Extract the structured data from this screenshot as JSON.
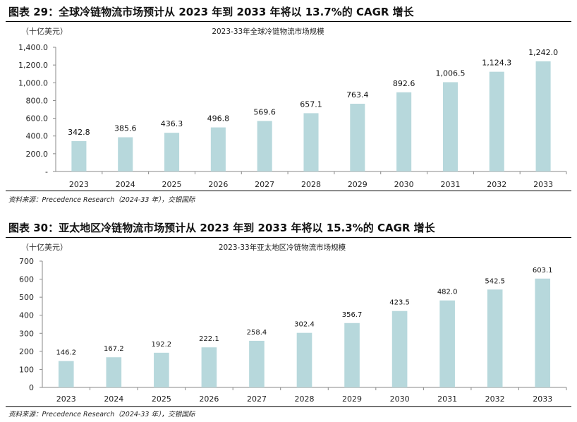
{
  "figures": [
    {
      "heading": "图表 29：全球冷链物流市场预计从 2023 年到 2033 年将以 13.7%的 CAGR 增长",
      "source": "资料来源：Precedence Research（2024-33 年），交银国际"
    },
    {
      "heading": "图表 30：亚太地区冷链物流市场预计从 2023 年到 2033 年将以 15.3%的 CAGR 增长",
      "source": "资料来源：Precedence Research（2024-33 年），交银国际"
    }
  ],
  "chart_data": [
    {
      "type": "bar",
      "title": "2023-33年全球冷链物流市场规模",
      "unit_label": "（十亿美元）",
      "categories": [
        "2023",
        "2024",
        "2025",
        "2026",
        "2027",
        "2028",
        "2029",
        "2030",
        "2031",
        "2032",
        "2033"
      ],
      "values": [
        342.8,
        385.6,
        436.3,
        496.8,
        569.6,
        657.1,
        763.4,
        892.6,
        1006.5,
        1124.3,
        1242.0
      ],
      "value_labels": [
        "342.8",
        "385.6",
        "436.3",
        "496.8",
        "569.6",
        "657.1",
        "763.4",
        "892.6",
        "1,006.5",
        "1,124.3",
        "1,242.0"
      ],
      "yticks": [
        0,
        200,
        400,
        600,
        800,
        1000,
        1200,
        1400
      ],
      "ytick_labels": [
        "-",
        "200.0",
        "400.0",
        "600.0",
        "800.0",
        "1,000.0",
        "1,200.0",
        "1,400.0"
      ],
      "ylim": [
        0,
        1400
      ],
      "bar_color": "#b7d8dc"
    },
    {
      "type": "bar",
      "title": "2023-33年亚太地区冷链物流市场规模",
      "unit_label": "（十亿美元）",
      "categories": [
        "2023",
        "2024",
        "2025",
        "2026",
        "2027",
        "2028",
        "2029",
        "2030",
        "2031",
        "2032",
        "2033"
      ],
      "values": [
        146.2,
        167.2,
        192.2,
        222.1,
        258.4,
        302.4,
        356.7,
        423.5,
        482.0,
        542.5,
        603.1
      ],
      "value_labels": [
        "146.2",
        "167.2",
        "192.2",
        "222.1",
        "258.4",
        "302.4",
        "356.7",
        "423.5",
        "482.0",
        "542.5",
        "603.1"
      ],
      "yticks": [
        0,
        100,
        200,
        300,
        400,
        500,
        600,
        700
      ],
      "ytick_labels": [
        "0",
        "100",
        "200",
        "300",
        "400",
        "500",
        "600",
        "700"
      ],
      "ylim": [
        0,
        700
      ],
      "bar_color": "#b7d8dc"
    }
  ]
}
